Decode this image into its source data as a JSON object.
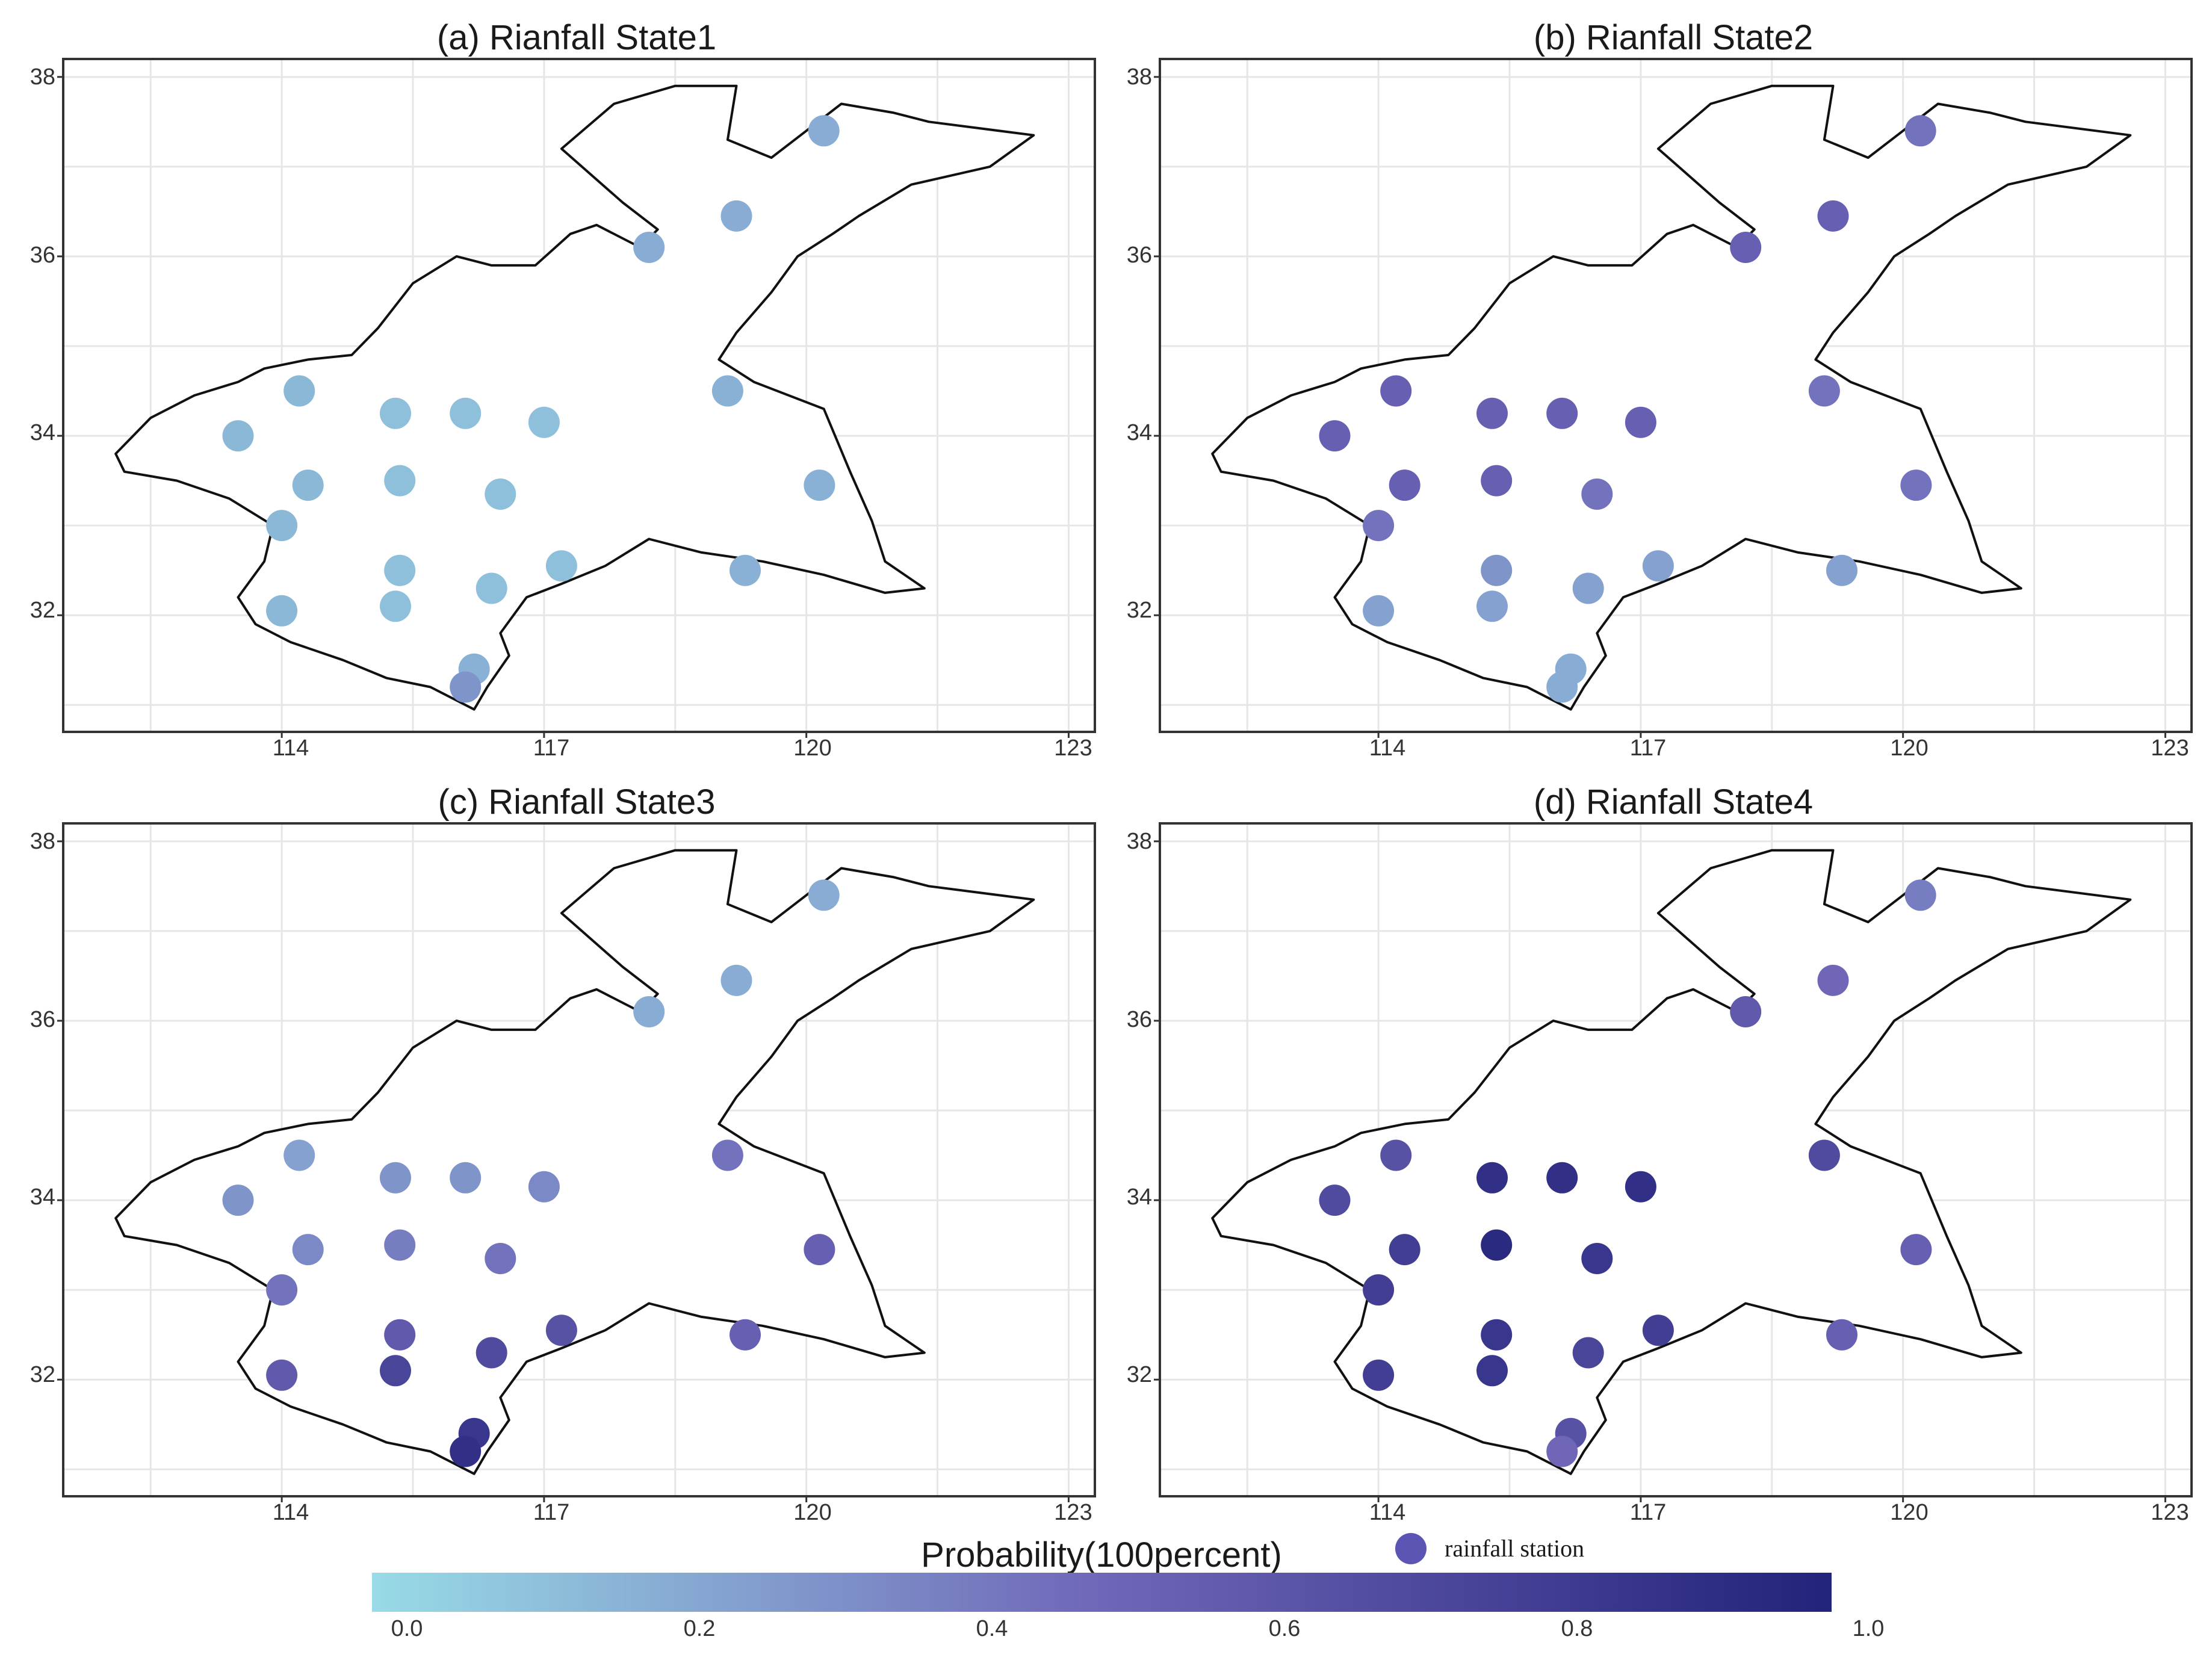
{
  "chart_data": [
    {
      "type": "scatter",
      "title": "(a) Rianfall State1",
      "xlabel": "",
      "ylabel": "",
      "xticks": [
        114,
        117,
        120,
        123
      ],
      "yticks": [
        32,
        34,
        36,
        38
      ],
      "xlim": [
        111.5,
        123.3
      ],
      "ylim": [
        30.7,
        38.2
      ],
      "grid": true,
      "points": [
        {
          "lon": 120.2,
          "lat": 37.4,
          "p": 0.2
        },
        {
          "lon": 119.2,
          "lat": 36.45,
          "p": 0.2
        },
        {
          "lon": 118.2,
          "lat": 36.1,
          "p": 0.2
        },
        {
          "lon": 119.1,
          "lat": 34.5,
          "p": 0.18
        },
        {
          "lon": 120.15,
          "lat": 33.45,
          "p": 0.18
        },
        {
          "lon": 119.3,
          "lat": 32.5,
          "p": 0.18
        },
        {
          "lon": 113.5,
          "lat": 34.0,
          "p": 0.15
        },
        {
          "lon": 114.2,
          "lat": 34.5,
          "p": 0.15
        },
        {
          "lon": 114.3,
          "lat": 33.45,
          "p": 0.15
        },
        {
          "lon": 114.0,
          "lat": 33.0,
          "p": 0.15
        },
        {
          "lon": 114.0,
          "lat": 32.05,
          "p": 0.15
        },
        {
          "lon": 115.3,
          "lat": 34.25,
          "p": 0.12
        },
        {
          "lon": 116.1,
          "lat": 34.25,
          "p": 0.12
        },
        {
          "lon": 117.0,
          "lat": 34.15,
          "p": 0.12
        },
        {
          "lon": 115.35,
          "lat": 33.5,
          "p": 0.12
        },
        {
          "lon": 116.5,
          "lat": 33.35,
          "p": 0.12
        },
        {
          "lon": 115.35,
          "lat": 32.5,
          "p": 0.12
        },
        {
          "lon": 115.3,
          "lat": 32.1,
          "p": 0.12
        },
        {
          "lon": 116.4,
          "lat": 32.3,
          "p": 0.12
        },
        {
          "lon": 117.2,
          "lat": 32.55,
          "p": 0.12
        },
        {
          "lon": 116.2,
          "lat": 31.4,
          "p": 0.18
        },
        {
          "lon": 116.1,
          "lat": 31.2,
          "p": 0.3
        }
      ]
    },
    {
      "type": "scatter",
      "title": "(b) Rianfall State2",
      "xlabel": "",
      "ylabel": "",
      "xticks": [
        114,
        117,
        120,
        123
      ],
      "yticks": [
        32,
        34,
        36,
        38
      ],
      "xlim": [
        111.5,
        123.3
      ],
      "ylim": [
        30.7,
        38.2
      ],
      "grid": true,
      "points": [
        {
          "lon": 120.2,
          "lat": 37.4,
          "p": 0.45
        },
        {
          "lon": 119.2,
          "lat": 36.45,
          "p": 0.55
        },
        {
          "lon": 118.2,
          "lat": 36.1,
          "p": 0.55
        },
        {
          "lon": 119.1,
          "lat": 34.5,
          "p": 0.45
        },
        {
          "lon": 120.15,
          "lat": 33.45,
          "p": 0.45
        },
        {
          "lon": 119.3,
          "lat": 32.5,
          "p": 0.25
        },
        {
          "lon": 113.5,
          "lat": 34.0,
          "p": 0.55
        },
        {
          "lon": 114.2,
          "lat": 34.5,
          "p": 0.55
        },
        {
          "lon": 114.3,
          "lat": 33.45,
          "p": 0.55
        },
        {
          "lon": 114.0,
          "lat": 33.0,
          "p": 0.45
        },
        {
          "lon": 114.0,
          "lat": 32.05,
          "p": 0.25
        },
        {
          "lon": 115.3,
          "lat": 34.25,
          "p": 0.55
        },
        {
          "lon": 116.1,
          "lat": 34.25,
          "p": 0.55
        },
        {
          "lon": 117.0,
          "lat": 34.15,
          "p": 0.55
        },
        {
          "lon": 115.35,
          "lat": 33.5,
          "p": 0.55
        },
        {
          "lon": 116.5,
          "lat": 33.35,
          "p": 0.45
        },
        {
          "lon": 115.35,
          "lat": 32.5,
          "p": 0.3
        },
        {
          "lon": 115.3,
          "lat": 32.1,
          "p": 0.25
        },
        {
          "lon": 116.4,
          "lat": 32.3,
          "p": 0.25
        },
        {
          "lon": 117.2,
          "lat": 32.55,
          "p": 0.25
        },
        {
          "lon": 116.2,
          "lat": 31.4,
          "p": 0.2
        },
        {
          "lon": 116.1,
          "lat": 31.2,
          "p": 0.2
        }
      ]
    },
    {
      "type": "scatter",
      "title": "(c) Rianfall State3",
      "xlabel": "",
      "ylabel": "",
      "xticks": [
        114,
        117,
        120,
        123
      ],
      "yticks": [
        32,
        34,
        36,
        38
      ],
      "xlim": [
        111.5,
        123.3
      ],
      "ylim": [
        30.7,
        38.2
      ],
      "grid": true,
      "points": [
        {
          "lon": 120.2,
          "lat": 37.4,
          "p": 0.2
        },
        {
          "lon": 119.2,
          "lat": 36.45,
          "p": 0.2
        },
        {
          "lon": 118.2,
          "lat": 36.1,
          "p": 0.2
        },
        {
          "lon": 119.1,
          "lat": 34.5,
          "p": 0.45
        },
        {
          "lon": 120.15,
          "lat": 33.45,
          "p": 0.55
        },
        {
          "lon": 119.3,
          "lat": 32.5,
          "p": 0.55
        },
        {
          "lon": 113.5,
          "lat": 34.0,
          "p": 0.3
        },
        {
          "lon": 114.2,
          "lat": 34.5,
          "p": 0.25
        },
        {
          "lon": 114.3,
          "lat": 33.45,
          "p": 0.35
        },
        {
          "lon": 114.0,
          "lat": 33.0,
          "p": 0.45
        },
        {
          "lon": 114.0,
          "lat": 32.05,
          "p": 0.6
        },
        {
          "lon": 115.3,
          "lat": 34.25,
          "p": 0.3
        },
        {
          "lon": 116.1,
          "lat": 34.25,
          "p": 0.3
        },
        {
          "lon": 117.0,
          "lat": 34.15,
          "p": 0.35
        },
        {
          "lon": 115.35,
          "lat": 33.5,
          "p": 0.4
        },
        {
          "lon": 116.5,
          "lat": 33.35,
          "p": 0.45
        },
        {
          "lon": 115.35,
          "lat": 32.5,
          "p": 0.6
        },
        {
          "lon": 115.3,
          "lat": 32.1,
          "p": 0.75
        },
        {
          "lon": 116.4,
          "lat": 32.3,
          "p": 0.7
        },
        {
          "lon": 117.2,
          "lat": 32.55,
          "p": 0.65
        },
        {
          "lon": 116.2,
          "lat": 31.4,
          "p": 0.85
        },
        {
          "lon": 116.1,
          "lat": 31.2,
          "p": 0.9
        }
      ]
    },
    {
      "type": "scatter",
      "title": "(d) Rianfall State4",
      "xlabel": "",
      "ylabel": "",
      "xticks": [
        114,
        117,
        120,
        123
      ],
      "yticks": [
        32,
        34,
        36,
        38
      ],
      "xlim": [
        111.5,
        123.3
      ],
      "ylim": [
        30.7,
        38.2
      ],
      "grid": true,
      "points": [
        {
          "lon": 120.2,
          "lat": 37.4,
          "p": 0.4
        },
        {
          "lon": 119.2,
          "lat": 36.45,
          "p": 0.5
        },
        {
          "lon": 118.2,
          "lat": 36.1,
          "p": 0.6
        },
        {
          "lon": 119.1,
          "lat": 34.5,
          "p": 0.7
        },
        {
          "lon": 120.15,
          "lat": 33.45,
          "p": 0.55
        },
        {
          "lon": 119.3,
          "lat": 32.5,
          "p": 0.55
        },
        {
          "lon": 113.5,
          "lat": 34.0,
          "p": 0.7
        },
        {
          "lon": 114.2,
          "lat": 34.5,
          "p": 0.65
        },
        {
          "lon": 114.3,
          "lat": 33.45,
          "p": 0.8
        },
        {
          "lon": 114.0,
          "lat": 33.0,
          "p": 0.8
        },
        {
          "lon": 114.0,
          "lat": 32.05,
          "p": 0.8
        },
        {
          "lon": 115.3,
          "lat": 34.25,
          "p": 0.9
        },
        {
          "lon": 116.1,
          "lat": 34.25,
          "p": 0.9
        },
        {
          "lon": 117.0,
          "lat": 34.15,
          "p": 0.9
        },
        {
          "lon": 115.35,
          "lat": 33.5,
          "p": 0.95
        },
        {
          "lon": 116.5,
          "lat": 33.35,
          "p": 0.85
        },
        {
          "lon": 115.35,
          "lat": 32.5,
          "p": 0.85
        },
        {
          "lon": 115.3,
          "lat": 32.1,
          "p": 0.85
        },
        {
          "lon": 116.4,
          "lat": 32.3,
          "p": 0.75
        },
        {
          "lon": 117.2,
          "lat": 32.55,
          "p": 0.8
        },
        {
          "lon": 116.2,
          "lat": 31.4,
          "p": 0.65
        },
        {
          "lon": 116.1,
          "lat": 31.2,
          "p": 0.5
        }
      ]
    }
  ],
  "legend": {
    "title": "Probability(100percent)",
    "ticks": [
      "0.0",
      "0.2",
      "0.4",
      "0.6",
      "0.8",
      "1.0"
    ],
    "range": [
      0.0,
      1.0
    ],
    "color_low": "#98dbe6",
    "color_mid": "#6f66b8",
    "color_high": "#22237a",
    "key_label": "rainfall station",
    "key_color": "#5d55b3"
  },
  "region_outline": [
    [
      112.1,
      33.8
    ],
    [
      112.5,
      34.2
    ],
    [
      113.0,
      34.45
    ],
    [
      113.5,
      34.6
    ],
    [
      113.8,
      34.75
    ],
    [
      114.3,
      34.85
    ],
    [
      114.8,
      34.9
    ],
    [
      115.1,
      35.2
    ],
    [
      115.5,
      35.7
    ],
    [
      116.0,
      36.0
    ],
    [
      116.4,
      35.9
    ],
    [
      116.9,
      35.9
    ],
    [
      117.3,
      36.25
    ],
    [
      117.6,
      36.35
    ],
    [
      117.9,
      36.2
    ],
    [
      118.1,
      36.1
    ],
    [
      118.3,
      36.3
    ],
    [
      117.9,
      36.6
    ],
    [
      117.2,
      37.2
    ],
    [
      117.8,
      37.7
    ],
    [
      118.5,
      37.9
    ],
    [
      119.2,
      37.9
    ],
    [
      119.1,
      37.3
    ],
    [
      119.6,
      37.1
    ],
    [
      120.0,
      37.4
    ],
    [
      120.4,
      37.7
    ],
    [
      121.0,
      37.6
    ],
    [
      121.4,
      37.5
    ],
    [
      122.6,
      37.35
    ],
    [
      122.1,
      37.0
    ],
    [
      121.2,
      36.8
    ],
    [
      120.6,
      36.45
    ],
    [
      120.3,
      36.25
    ],
    [
      119.9,
      36.0
    ],
    [
      119.6,
      35.6
    ],
    [
      119.2,
      35.15
    ],
    [
      119.0,
      34.85
    ],
    [
      119.4,
      34.6
    ],
    [
      120.2,
      34.3
    ],
    [
      120.5,
      33.6
    ],
    [
      120.75,
      33.05
    ],
    [
      120.9,
      32.6
    ],
    [
      121.35,
      32.3
    ],
    [
      120.9,
      32.25
    ],
    [
      120.2,
      32.45
    ],
    [
      119.5,
      32.6
    ],
    [
      118.8,
      32.7
    ],
    [
      118.2,
      32.85
    ],
    [
      117.7,
      32.55
    ],
    [
      117.2,
      32.35
    ],
    [
      116.8,
      32.2
    ],
    [
      116.5,
      31.8
    ],
    [
      116.6,
      31.55
    ],
    [
      116.35,
      31.2
    ],
    [
      116.2,
      30.95
    ],
    [
      115.7,
      31.2
    ],
    [
      115.2,
      31.3
    ],
    [
      114.7,
      31.5
    ],
    [
      114.1,
      31.7
    ],
    [
      113.7,
      31.9
    ],
    [
      113.5,
      32.2
    ],
    [
      113.8,
      32.6
    ],
    [
      113.9,
      33.0
    ],
    [
      113.4,
      33.3
    ],
    [
      112.8,
      33.5
    ],
    [
      112.2,
      33.6
    ],
    [
      112.1,
      33.8
    ]
  ]
}
